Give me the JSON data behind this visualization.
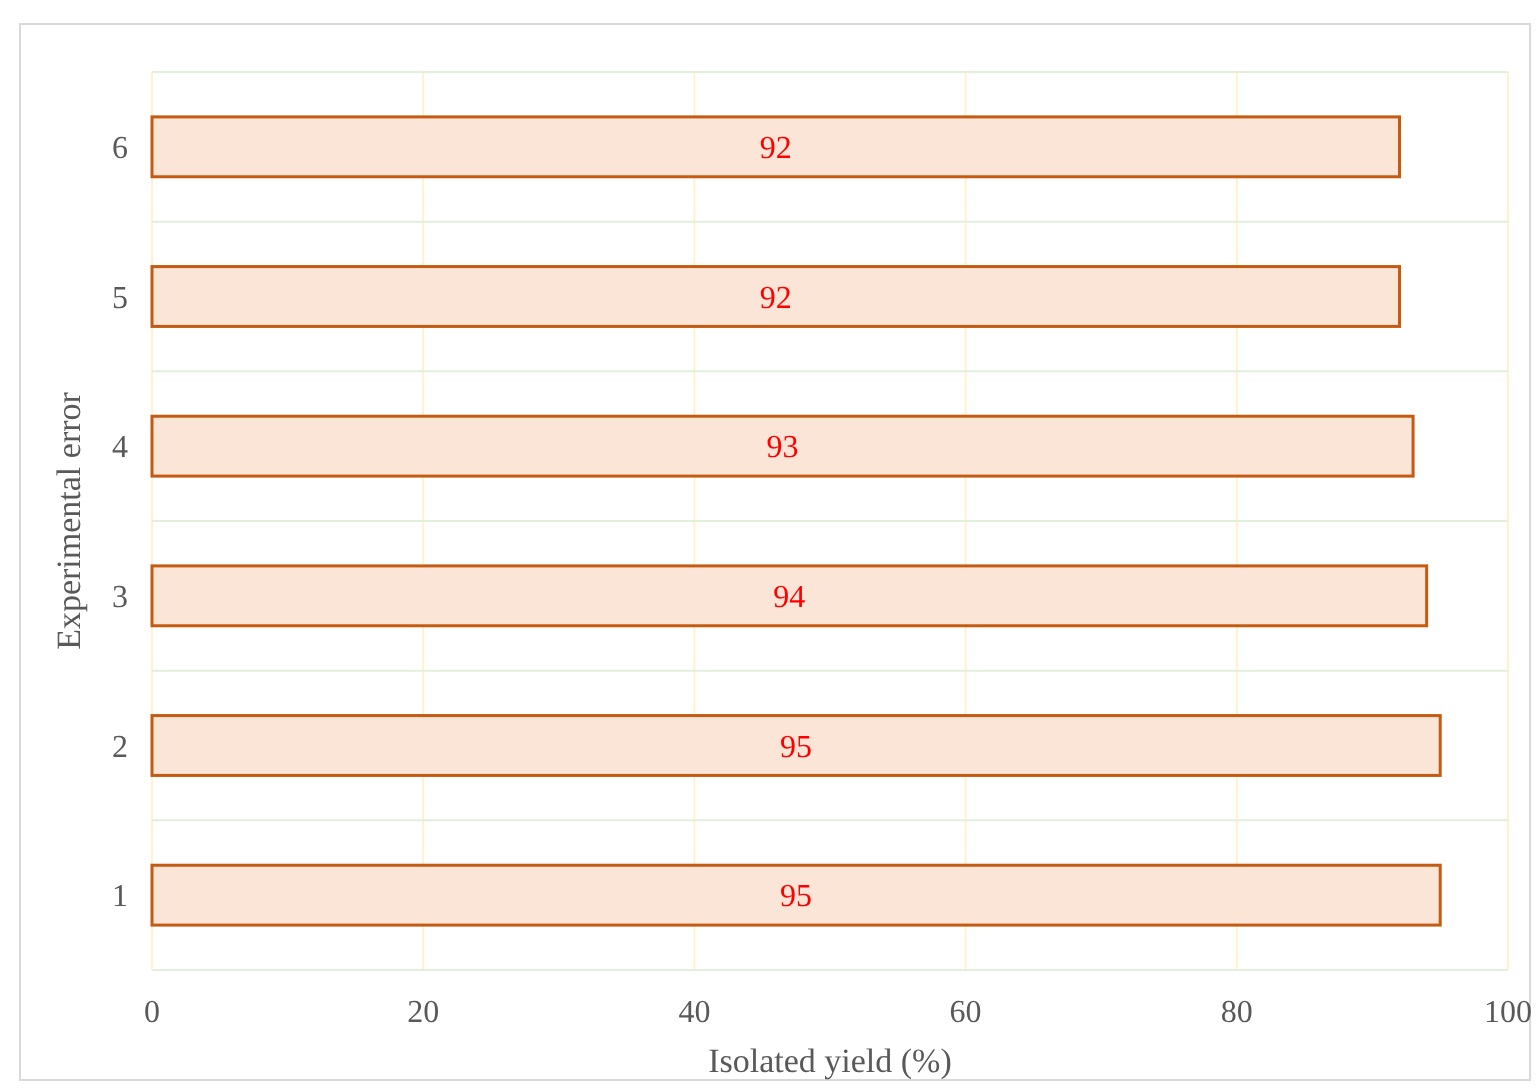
{
  "chart_data": {
    "type": "bar",
    "orientation": "horizontal",
    "xlabel": "Isolated yield (%)",
    "ylabel": "Experimental error",
    "categories": [
      "6",
      "5",
      "4",
      "3",
      "2",
      "1"
    ],
    "values": [
      92,
      92,
      93,
      94,
      95,
      95
    ],
    "color": "#fbe5d6",
    "xlim": [
      0,
      100
    ],
    "xticks": [
      0,
      20,
      40,
      60,
      80,
      100
    ],
    "grid": true,
    "data_labels": true
  }
}
